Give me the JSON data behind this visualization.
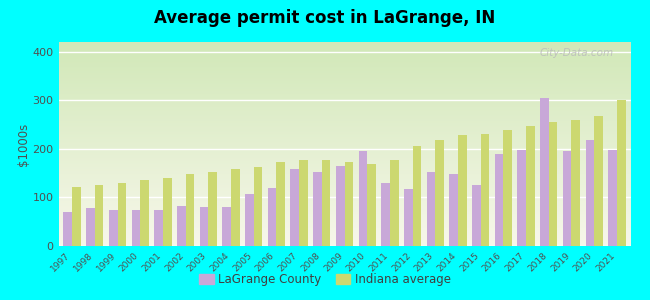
{
  "title": "Average permit cost in LaGrange, IN",
  "ylabel": "$1000s",
  "background_color": "#00FFFF",
  "years": [
    1997,
    1998,
    1999,
    2000,
    2001,
    2002,
    2003,
    2004,
    2005,
    2006,
    2007,
    2008,
    2009,
    2010,
    2011,
    2012,
    2013,
    2014,
    2015,
    2016,
    2017,
    2018,
    2019,
    2020,
    2021
  ],
  "lagrange": [
    70,
    78,
    75,
    75,
    75,
    82,
    80,
    80,
    108,
    120,
    158,
    152,
    165,
    195,
    130,
    118,
    152,
    148,
    125,
    190,
    198,
    305,
    195,
    218,
    198
  ],
  "indiana": [
    122,
    125,
    130,
    135,
    140,
    148,
    152,
    158,
    163,
    173,
    178,
    178,
    172,
    168,
    178,
    205,
    218,
    228,
    230,
    238,
    248,
    255,
    260,
    268,
    300
  ],
  "lagrange_color": "#c8a8d8",
  "indiana_color": "#ccd870",
  "ylim": [
    0,
    420
  ],
  "yticks": [
    0,
    100,
    200,
    300,
    400
  ],
  "bar_width": 0.38,
  "legend_lagrange": "LaGrange County",
  "legend_indiana": "Indiana average"
}
